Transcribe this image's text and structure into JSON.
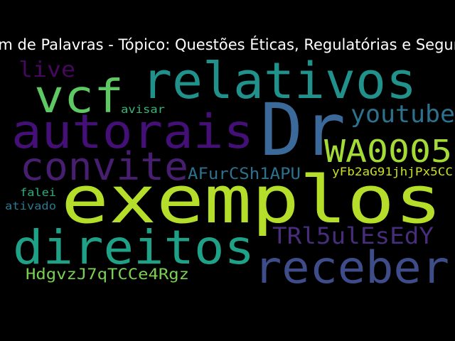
{
  "title": "Nuvem de Palavras - Tópico: Questões Éticas, Regulatórias e Segurança",
  "words": [
    {
      "text": "exemplos",
      "color": "#b5de2b"
    },
    {
      "text": "Dr",
      "color": "#3b6a9a"
    },
    {
      "text": "relativos",
      "color": "#21918c"
    },
    {
      "text": "autorais",
      "color": "#440f76"
    },
    {
      "text": "vcf",
      "color": "#5ec962"
    },
    {
      "text": "direitos",
      "color": "#1fa187"
    },
    {
      "text": "receber",
      "color": "#3e4c8a"
    },
    {
      "text": "convite",
      "color": "#481f70"
    },
    {
      "text": "WA0005",
      "color": "#a5db36"
    },
    {
      "text": "youtube",
      "color": "#2c728e"
    },
    {
      "text": "TRl5ulEsEdY",
      "color": "#472d7b"
    },
    {
      "text": "live",
      "color": "#46085c"
    },
    {
      "text": "AFurCSh1APU",
      "color": "#2c718e"
    },
    {
      "text": "HdgvzJ7qTCCe4Rgz",
      "color": "#7ad151"
    },
    {
      "text": "yFb2aG91jhjPx5CC",
      "color": "#c8e020"
    },
    {
      "text": "avisar",
      "color": "#35b779"
    },
    {
      "text": "falei",
      "color": "#29af7f"
    },
    {
      "text": "ativado",
      "color": "#2a788e"
    }
  ]
}
